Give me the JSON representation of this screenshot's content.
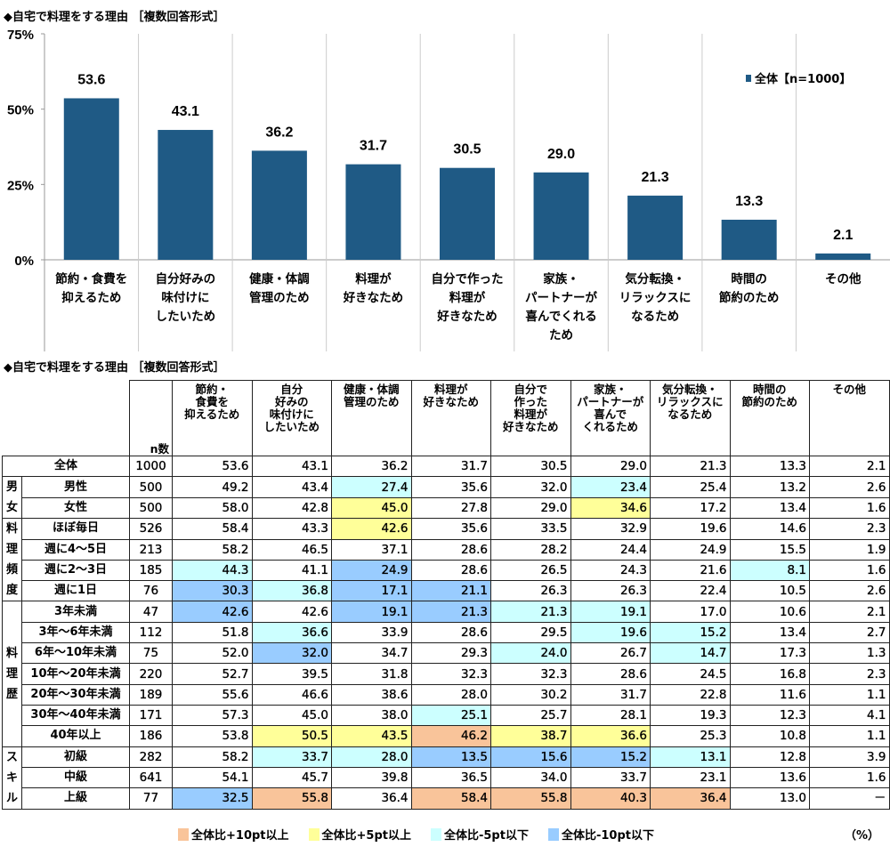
{
  "chart_data": {
    "type": "bar",
    "title": "◆自宅で料理をする理由 ［複数回答形式］",
    "categories": [
      "節約・食費を\n抑えるため",
      "自分好みの\n味付けに\nしたいため",
      "健康・体調\n管理のため",
      "料理が\n好きなため",
      "自分で作った\n料理が\n好きなため",
      "家族・\nパートナーが\n喜んでくれる\nため",
      "気分転換・\nリラックスに\nなるため",
      "時間の\n節約のため",
      "その他"
    ],
    "series": [
      {
        "name": "全体【n=1000】",
        "values": [
          53.6,
          43.1,
          36.2,
          31.7,
          30.5,
          29.0,
          21.3,
          13.3,
          2.1
        ]
      }
    ],
    "ylim": [
      0,
      75
    ],
    "yticks": [
      "0%",
      "25%",
      "50%",
      "75%"
    ],
    "yticks_values": [
      0,
      25,
      50,
      75
    ],
    "legend_position": "top-right",
    "bar_color": "#1f5a85",
    "grid": "vertical category separators"
  },
  "table": {
    "title": "◆自宅で料理をする理由 ［複数回答形式］",
    "n_label": "n数",
    "headers": [
      "節約・\n食費を\n抑えるため",
      "自分\n好みの\n味付けに\nしたいため",
      "健康・体調\n管理のため",
      "料理が\n好きなため",
      "自分で\n作った\n料理が\n好きなため",
      "家族・\nパートナーが\n喜んで\nくれるため",
      "気分転換・\nリラックスに\nなるため",
      "時間の\n節約のため",
      "その他"
    ],
    "groups": [
      {
        "label": "",
        "rows": [
          {
            "label": "全体",
            "n": "1000",
            "v": [
              "53.6",
              "43.1",
              "36.2",
              "31.7",
              "30.5",
              "29.0",
              "21.3",
              "13.3",
              "2.1"
            ],
            "h": [
              "",
              "",
              "",
              "",
              "",
              "",
              "",
              "",
              ""
            ]
          }
        ]
      },
      {
        "label": "男\n女",
        "rows": [
          {
            "label": "男性",
            "n": "500",
            "v": [
              "49.2",
              "43.4",
              "27.4",
              "35.6",
              "32.0",
              "23.4",
              "25.4",
              "13.2",
              "2.6"
            ],
            "h": [
              "",
              "",
              "c",
              "",
              "",
              "c",
              "",
              "",
              ""
            ]
          },
          {
            "label": "女性",
            "n": "500",
            "v": [
              "58.0",
              "42.8",
              "45.0",
              "27.8",
              "29.0",
              "34.6",
              "17.2",
              "13.4",
              "1.6"
            ],
            "h": [
              "",
              "",
              "y",
              "",
              "",
              "y",
              "",
              "",
              ""
            ]
          }
        ]
      },
      {
        "label": "料\n理\n頻\n度",
        "rows": [
          {
            "label": "ほぼ毎日",
            "n": "526",
            "v": [
              "58.4",
              "43.3",
              "42.6",
              "35.6",
              "33.5",
              "32.9",
              "19.6",
              "14.6",
              "2.3"
            ],
            "h": [
              "",
              "",
              "y",
              "",
              "",
              "",
              "",
              "",
              ""
            ]
          },
          {
            "label": "週に4～5日",
            "n": "213",
            "v": [
              "58.2",
              "46.5",
              "37.1",
              "28.6",
              "28.2",
              "24.4",
              "24.9",
              "15.5",
              "1.9"
            ],
            "h": [
              "",
              "",
              "",
              "",
              "",
              "",
              "",
              "",
              ""
            ]
          },
          {
            "label": "週に2～3日",
            "n": "185",
            "v": [
              "44.3",
              "41.1",
              "24.9",
              "28.6",
              "26.5",
              "24.3",
              "21.6",
              "8.1",
              "1.6"
            ],
            "h": [
              "c",
              "",
              "b",
              "",
              "",
              "",
              "",
              "c",
              ""
            ]
          },
          {
            "label": "週に1日",
            "n": "76",
            "v": [
              "30.3",
              "36.8",
              "17.1",
              "21.1",
              "26.3",
              "26.3",
              "22.4",
              "10.5",
              "2.6"
            ],
            "h": [
              "b",
              "c",
              "b",
              "b",
              "",
              "",
              "",
              "",
              ""
            ]
          }
        ]
      },
      {
        "label": "料\n理\n歴",
        "rows": [
          {
            "label": "3年未満",
            "n": "47",
            "v": [
              "42.6",
              "42.6",
              "19.1",
              "21.3",
              "21.3",
              "19.1",
              "17.0",
              "10.6",
              "2.1"
            ],
            "h": [
              "b",
              "",
              "b",
              "b",
              "c",
              "c",
              "",
              "",
              ""
            ]
          },
          {
            "label": "3年～6年未満",
            "n": "112",
            "v": [
              "51.8",
              "36.6",
              "33.9",
              "28.6",
              "29.5",
              "19.6",
              "15.2",
              "13.4",
              "2.7"
            ],
            "h": [
              "",
              "c",
              "",
              "",
              "",
              "c",
              "c",
              "",
              ""
            ]
          },
          {
            "label": "6年～10年未満",
            "n": "75",
            "v": [
              "52.0",
              "32.0",
              "34.7",
              "29.3",
              "24.0",
              "26.7",
              "14.7",
              "17.3",
              "1.3"
            ],
            "h": [
              "",
              "b",
              "",
              "",
              "c",
              "",
              "c",
              "",
              ""
            ]
          },
          {
            "label": "10年～20年未満",
            "n": "220",
            "v": [
              "52.7",
              "39.5",
              "31.8",
              "32.3",
              "32.3",
              "28.6",
              "24.5",
              "16.8",
              "2.3"
            ],
            "h": [
              "",
              "",
              "",
              "",
              "",
              "",
              "",
              "",
              ""
            ]
          },
          {
            "label": "20年～30年未満",
            "n": "189",
            "v": [
              "55.6",
              "46.6",
              "38.6",
              "28.0",
              "30.2",
              "31.7",
              "22.8",
              "11.6",
              "1.1"
            ],
            "h": [
              "",
              "",
              "",
              "",
              "",
              "",
              "",
              "",
              ""
            ]
          },
          {
            "label": "30年～40年未満",
            "n": "171",
            "v": [
              "57.3",
              "45.0",
              "38.0",
              "25.1",
              "25.7",
              "28.1",
              "19.3",
              "12.3",
              "4.1"
            ],
            "h": [
              "",
              "",
              "",
              "c",
              "",
              "",
              "",
              "",
              ""
            ]
          },
          {
            "label": "40年以上",
            "n": "186",
            "v": [
              "53.8",
              "50.5",
              "43.5",
              "46.2",
              "38.7",
              "36.6",
              "25.3",
              "10.8",
              "1.1"
            ],
            "h": [
              "",
              "y",
              "y",
              "o",
              "y",
              "y",
              "",
              "",
              ""
            ]
          }
        ]
      },
      {
        "label": "ス\nキ\nル",
        "rows": [
          {
            "label": "初級",
            "n": "282",
            "v": [
              "58.2",
              "33.7",
              "28.0",
              "13.5",
              "15.6",
              "15.2",
              "13.1",
              "12.8",
              "3.9"
            ],
            "h": [
              "",
              "c",
              "c",
              "b",
              "b",
              "b",
              "c",
              "",
              ""
            ]
          },
          {
            "label": "中級",
            "n": "641",
            "v": [
              "54.1",
              "45.7",
              "39.8",
              "36.5",
              "34.0",
              "33.7",
              "23.1",
              "13.6",
              "1.6"
            ],
            "h": [
              "",
              "",
              "",
              "",
              "",
              "",
              "",
              "",
              ""
            ]
          },
          {
            "label": "上級",
            "n": "77",
            "v": [
              "32.5",
              "55.8",
              "36.4",
              "58.4",
              "55.8",
              "40.3",
              "36.4",
              "13.0",
              "－"
            ],
            "h": [
              "b",
              "o",
              "",
              "o",
              "o",
              "o",
              "o",
              "",
              ""
            ]
          }
        ]
      }
    ],
    "legend": [
      {
        "key": "o",
        "label": "全体比+10pt以上",
        "color": "#f9c49a"
      },
      {
        "key": "y",
        "label": "全体比+5pt以上",
        "color": "#ffff99"
      },
      {
        "key": "c",
        "label": "全体比-5pt以下",
        "color": "#ccffff"
      },
      {
        "key": "b",
        "label": "全体比-10pt以下",
        "color": "#99ccff"
      }
    ],
    "unit": "（%）"
  }
}
